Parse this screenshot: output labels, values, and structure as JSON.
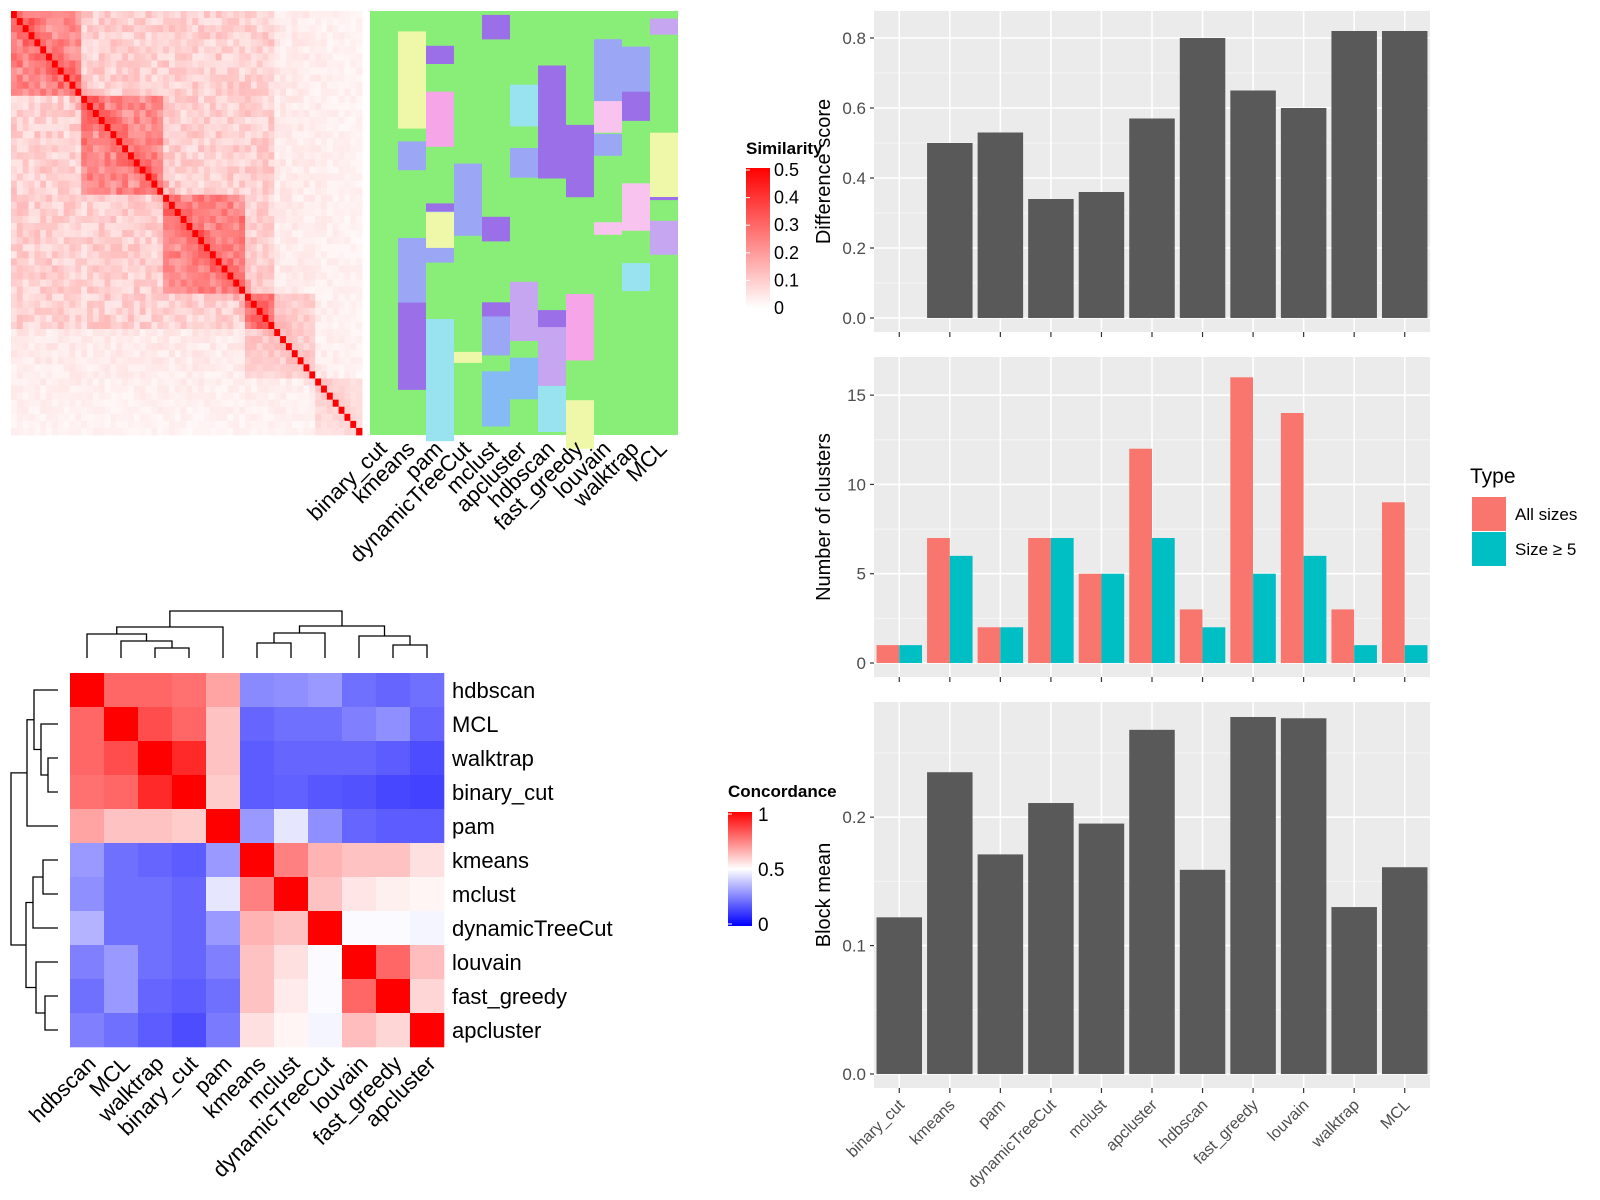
{
  "colors": {
    "bar_gray": "#595959",
    "panel_bg": "#ebebeb",
    "all_sizes": "#F8766D",
    "size_ge5": "#00BFC4",
    "cluster_bg_green": "#88ee77",
    "sim_high": "#ff0000",
    "conc_low": "#0000ff"
  },
  "similarity_legend": {
    "title": "Similarity",
    "ticks": [
      "0.5",
      "0.4",
      "0.3",
      "0.2",
      "0.1",
      "0"
    ]
  },
  "concordance_legend": {
    "title": "Concordance",
    "ticks": [
      "1",
      "0.5",
      "0"
    ]
  },
  "top_heatmap_methods": [
    "binary_cut",
    "kmeans",
    "pam",
    "dynamicTreeCut",
    "mclust",
    "apcluster",
    "hdbscan",
    "fast_greedy",
    "louvain",
    "walktrap",
    "MCL"
  ],
  "concordance_methods": [
    "hdbscan",
    "MCL",
    "walktrap",
    "binary_cut",
    "pam",
    "kmeans",
    "mclust",
    "dynamicTreeCut",
    "louvain",
    "fast_greedy",
    "apcluster"
  ],
  "bar_legend": {
    "title": "Type",
    "items": [
      "All sizes",
      "Size ≥ 5"
    ]
  },
  "chart_data": [
    {
      "type": "heatmap",
      "name": "concordance",
      "rows": [
        "hdbscan",
        "MCL",
        "walktrap",
        "binary_cut",
        "pam",
        "kmeans",
        "mclust",
        "dynamicTreeCut",
        "louvain",
        "fast_greedy",
        "apcluster"
      ],
      "cols": [
        "hdbscan",
        "MCL",
        "walktrap",
        "binary_cut",
        "pam",
        "kmeans",
        "mclust",
        "dynamicTreeCut",
        "louvain",
        "fast_greedy",
        "apcluster"
      ],
      "values": [
        [
          1.0,
          0.8,
          0.8,
          0.78,
          0.68,
          0.27,
          0.28,
          0.3,
          0.22,
          0.2,
          0.22
        ],
        [
          0.8,
          1.0,
          0.85,
          0.8,
          0.62,
          0.2,
          0.22,
          0.22,
          0.25,
          0.28,
          0.2
        ],
        [
          0.8,
          0.85,
          1.0,
          0.92,
          0.62,
          0.18,
          0.2,
          0.2,
          0.2,
          0.18,
          0.15
        ],
        [
          0.78,
          0.8,
          0.92,
          1.0,
          0.6,
          0.18,
          0.19,
          0.17,
          0.16,
          0.14,
          0.13
        ],
        [
          0.68,
          0.62,
          0.62,
          0.6,
          1.0,
          0.3,
          0.45,
          0.28,
          0.2,
          0.18,
          0.18
        ],
        [
          0.3,
          0.22,
          0.2,
          0.18,
          0.3,
          1.0,
          0.75,
          0.65,
          0.62,
          0.62,
          0.56
        ],
        [
          0.28,
          0.22,
          0.22,
          0.2,
          0.45,
          0.75,
          1.0,
          0.62,
          0.55,
          0.53,
          0.52
        ],
        [
          0.35,
          0.22,
          0.22,
          0.2,
          0.3,
          0.65,
          0.62,
          1.0,
          0.49,
          0.49,
          0.48
        ],
        [
          0.25,
          0.3,
          0.22,
          0.2,
          0.25,
          0.62,
          0.56,
          0.49,
          1.0,
          0.8,
          0.63
        ],
        [
          0.22,
          0.3,
          0.2,
          0.18,
          0.22,
          0.62,
          0.54,
          0.49,
          0.8,
          1.0,
          0.58
        ],
        [
          0.25,
          0.22,
          0.18,
          0.15,
          0.24,
          0.56,
          0.52,
          0.48,
          0.63,
          0.58,
          1.0
        ]
      ]
    },
    {
      "type": "bar",
      "name": "difference-score",
      "ylabel": "Difference score",
      "categories": [
        "binary_cut",
        "kmeans",
        "pam",
        "dynamicTreeCut",
        "mclust",
        "apcluster",
        "hdbscan",
        "fast_greedy",
        "louvain",
        "walktrap",
        "MCL"
      ],
      "values": [
        0.0,
        0.5,
        0.53,
        0.34,
        0.36,
        0.57,
        0.8,
        0.65,
        0.6,
        0.82,
        0.82
      ],
      "ylim": [
        0,
        0.86
      ],
      "yticks": [
        "0.0",
        "0.2",
        "0.4",
        "0.6",
        "0.8"
      ]
    },
    {
      "type": "bar",
      "name": "number-of-clusters",
      "ylabel": "Number of clusters",
      "categories": [
        "binary_cut",
        "kmeans",
        "pam",
        "dynamicTreeCut",
        "mclust",
        "apcluster",
        "hdbscan",
        "fast_greedy",
        "louvain",
        "walktrap",
        "MCL"
      ],
      "series": [
        {
          "name": "All sizes",
          "values": [
            1,
            7,
            2,
            7,
            5,
            12,
            3,
            16,
            14,
            3,
            9
          ]
        },
        {
          "name": "Size ≥ 5",
          "values": [
            1,
            6,
            2,
            7,
            5,
            7,
            2,
            5,
            6,
            1,
            1
          ]
        }
      ],
      "ylim": [
        0,
        16.8
      ],
      "yticks": [
        "0",
        "5",
        "10",
        "15"
      ]
    },
    {
      "type": "bar",
      "name": "block-mean",
      "ylabel": "Block mean",
      "categories": [
        "binary_cut",
        "kmeans",
        "pam",
        "dynamicTreeCut",
        "mclust",
        "apcluster",
        "hdbscan",
        "fast_greedy",
        "louvain",
        "walktrap",
        "MCL"
      ],
      "values": [
        0.122,
        0.235,
        0.171,
        0.211,
        0.195,
        0.268,
        0.159,
        0.278,
        0.277,
        0.13,
        0.161
      ],
      "ylim": [
        0,
        0.285
      ],
      "yticks": [
        "0.0",
        "0.1",
        "0.2"
      ]
    }
  ]
}
